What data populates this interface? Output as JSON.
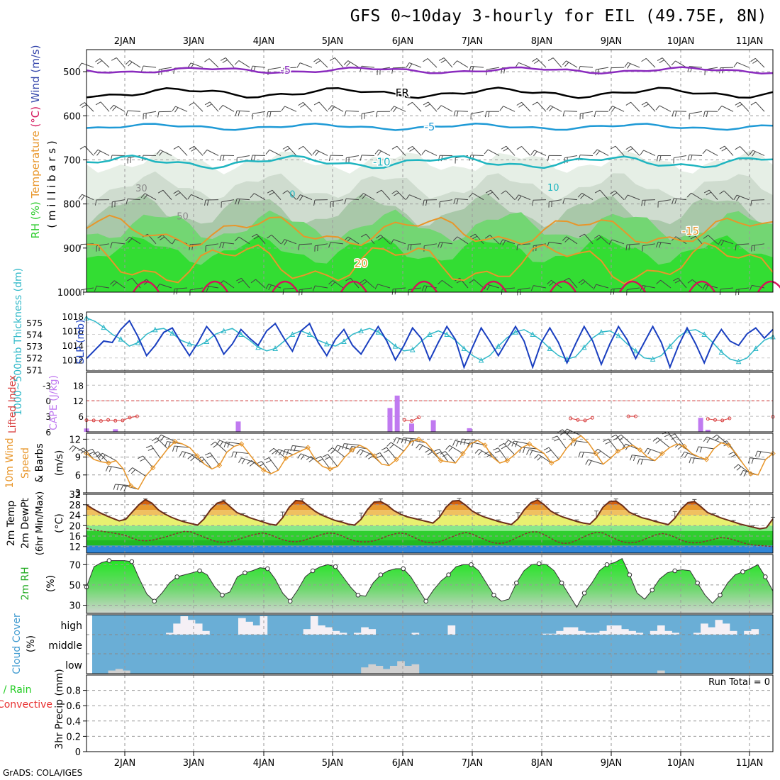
{
  "title": "GFS 0~10day 3-hourly for EIL (49.75E, 8N)",
  "credit": "GrADS: COLA/IGES",
  "chart_data": [
    {
      "type": "heatmap",
      "ylabel_parts": [
        {
          "text": "RH (%)",
          "color": "#2ecc2e"
        },
        {
          "text": "Temperature",
          "color": "#e8962a"
        },
        {
          "text": "(°C)",
          "color": "#d4145a"
        },
        {
          "text": "Wind (m/s)",
          "color": "#3344aa"
        }
      ],
      "ylabel2": "( m i l l i b a r s )",
      "y_ticks": [
        500,
        600,
        700,
        800,
        900,
        1000
      ],
      "ylim": [
        450,
        1000
      ],
      "isotherm_labels": [
        {
          "text": "-5",
          "color": "#8a2bbe"
        },
        {
          "text": "FR",
          "color": "#000000"
        },
        {
          "text": "-5",
          "color": "#1f9ad6"
        },
        {
          "text": "-10",
          "color": "#1fb5c0"
        },
        {
          "text": "0",
          "color": "#1fb5c0"
        },
        {
          "text": "10",
          "color": "#1fb5c0"
        },
        {
          "text": "-15",
          "color": "#e8962a"
        },
        {
          "text": "20",
          "color": "#e8962a"
        },
        {
          "text": "30",
          "color": "#888888"
        },
        {
          "text": "50",
          "color": "#888888"
        }
      ]
    },
    {
      "type": "line",
      "ylabel_left": "1000~500mb Thickness (dm)",
      "ylabel_right": "SLP (mb)",
      "left_ticks": [
        571,
        572,
        573,
        574,
        575
      ],
      "right_ticks": [
        1012,
        1014,
        1016,
        1018
      ],
      "thickness_dm": [
        575.4,
        575.1,
        574.6,
        574.0,
        573.6,
        573.0,
        573.3,
        574.0,
        574.4,
        574.5,
        574.1,
        573.5,
        573.2,
        573.0,
        573.4,
        574.0,
        574.3,
        574.5,
        574.0,
        573.5,
        572.9,
        572.6,
        572.8,
        573.4,
        574.0,
        574.3,
        574.0,
        573.5,
        573.2,
        573.0,
        573.4,
        574.0,
        574.3,
        574.5,
        574.2,
        573.6,
        573.0,
        572.6,
        572.7,
        573.4,
        574.0,
        574.3,
        574.0,
        573.5,
        572.8,
        572.2,
        571.8,
        572.2,
        573.0,
        573.7,
        574.2,
        574.4,
        574.0,
        573.5,
        572.8,
        572.2,
        571.9,
        572.1,
        572.9,
        573.7,
        574.2,
        574.3,
        573.9,
        573.2,
        572.6,
        572.0,
        571.9,
        572.2,
        573.0,
        573.8,
        574.3,
        574.4,
        574.0,
        573.3,
        572.5,
        571.9,
        571.7,
        572.0,
        572.8,
        573.5,
        573.8
      ],
      "slp_mb": [
        1012.2,
        1013.4,
        1014.6,
        1014.4,
        1016.2,
        1017.4,
        1015.2,
        1012.6,
        1014.0,
        1015.8,
        1016.4,
        1014.4,
        1012.6,
        1014.4,
        1016.6,
        1015.2,
        1012.8,
        1014.2,
        1016.2,
        1015.0,
        1014.0,
        1016.0,
        1017.0,
        1015.0,
        1013.2,
        1016.0,
        1017.0,
        1014.4,
        1012.6,
        1014.8,
        1016.2,
        1014.0,
        1012.8,
        1014.8,
        1016.6,
        1014.6,
        1012.0,
        1014.0,
        1016.4,
        1015.0,
        1012.0,
        1014.4,
        1016.6,
        1014.8,
        1011.0,
        1013.8,
        1016.4,
        1014.6,
        1012.6,
        1014.6,
        1016.6,
        1014.6,
        1011.0,
        1014.4,
        1016.4,
        1014.4,
        1011.6,
        1014.2,
        1016.6,
        1014.6,
        1011.4,
        1014.2,
        1016.6,
        1014.8,
        1012.2,
        1014.4,
        1016.6,
        1014.4,
        1011.0,
        1014.0,
        1016.4,
        1014.2,
        1011.6,
        1014.4,
        1016.2,
        1014.6,
        1014.0,
        1015.6,
        1016.4,
        1015.0,
        1016.2
      ],
      "colors": {
        "thickness": "#2fb8c8",
        "slp": "#1a3fc0"
      }
    },
    {
      "type": "bar",
      "ylabel_left": "Lifted Index",
      "ylabel_right": "CAPE (J/kg)",
      "left_ticks": [
        "6",
        "3",
        "0",
        "-3"
      ],
      "right_ticks": [
        6,
        12,
        18
      ],
      "cape_bars": [
        [
          0,
          1.3
        ],
        [
          4,
          1.0
        ],
        [
          21,
          4.0
        ],
        [
          42,
          9.2
        ],
        [
          43,
          14.0
        ],
        [
          45,
          3.2
        ],
        [
          48,
          4.5
        ],
        [
          53,
          1.4
        ],
        [
          85,
          5.4
        ],
        [
          86,
          0.8
        ]
      ],
      "lifted_index": [
        [
          0,
          4.5
        ],
        [
          1,
          4.4
        ],
        [
          2,
          4.2
        ],
        [
          3,
          4.6
        ],
        [
          4,
          4.3
        ],
        [
          5,
          4.4
        ],
        [
          6,
          5.5
        ],
        [
          7,
          6.0
        ],
        [
          44,
          4.6
        ],
        [
          45,
          4.2
        ],
        [
          46,
          5.6
        ],
        [
          67,
          5.2
        ],
        [
          68,
          4.6
        ],
        [
          69,
          4.4
        ],
        [
          70,
          5.4
        ],
        [
          75,
          6.0
        ],
        [
          76,
          6.0
        ],
        [
          86,
          5.0
        ],
        [
          87,
          4.6
        ],
        [
          88,
          4.4
        ],
        [
          89,
          5.2
        ],
        [
          95,
          5.8
        ]
      ],
      "zero_line": 12,
      "colors": {
        "cape": "#c07af0",
        "li": "#d94040"
      }
    },
    {
      "type": "line",
      "ylabel_parts": [
        {
          "text": "10m Wind",
          "color": "#e8962a"
        },
        {
          "text": "Speed",
          "color": "#e8962a"
        },
        {
          "text": "& Barbs",
          "color": "#000000"
        }
      ],
      "ylabel_right": "(m/s)",
      "y_ticks": [
        3,
        6,
        9,
        12
      ],
      "ylim": [
        3,
        13
      ],
      "speed_ms": [
        9.6,
        8.6,
        8.2,
        8.0,
        8.4,
        7.0,
        4.2,
        3.6,
        5.8,
        7.2,
        8.8,
        10.4,
        11.6,
        11.2,
        10.6,
        9.2,
        7.8,
        7.0,
        7.6,
        9.8,
        10.8,
        11.2,
        9.6,
        8.0,
        6.8,
        6.2,
        6.8,
        8.8,
        9.4,
        10.0,
        10.6,
        8.6,
        7.4,
        7.0,
        7.4,
        9.0,
        10.2,
        11.0,
        10.4,
        9.2,
        7.8,
        7.6,
        8.6,
        10.0,
        11.6,
        12.0,
        11.4,
        10.0,
        8.4,
        8.2,
        8.0,
        9.6,
        11.2,
        11.8,
        11.0,
        9.0,
        8.0,
        8.4,
        9.4,
        10.6,
        11.2,
        10.4,
        9.6,
        8.0,
        8.6,
        10.4,
        11.8,
        12.6,
        11.4,
        9.6,
        7.8,
        8.8,
        10.0,
        10.6,
        11.0,
        10.2,
        9.0,
        8.4,
        9.6,
        10.6,
        11.2,
        10.8,
        9.6,
        9.0,
        8.6,
        10.4,
        11.4,
        11.0,
        9.6,
        7.8,
        6.2,
        6.0,
        8.6,
        9.6
      ],
      "colors": {
        "speed": "#e8962a",
        "barb": "#6b4a2a"
      }
    },
    {
      "type": "area",
      "ylabel_parts": [
        {
          "text": "2m Temp",
          "color": "#000000"
        },
        {
          "text": "2m DewPt",
          "color": "#000000"
        },
        {
          "text": "(6hr Min/Max)",
          "color": "#000000"
        }
      ],
      "ylabel_right": "(°C)",
      "y_ticks": [
        12,
        16,
        20,
        24,
        28,
        32
      ],
      "ylim": [
        9.5,
        32
      ],
      "temp_c": [
        28.0,
        26.4,
        25.0,
        23.8,
        22.8,
        21.8,
        22.4,
        25.2,
        28.0,
        30.0,
        28.6,
        26.0,
        24.4,
        23.2,
        22.2,
        21.4,
        20.8,
        20.2,
        22.6,
        26.2,
        28.6,
        29.4,
        27.2,
        25.0,
        24.0,
        23.0,
        22.2,
        21.4,
        20.6,
        20.2,
        23.0,
        27.0,
        29.6,
        29.4,
        27.4,
        25.4,
        24.0,
        23.0,
        22.0,
        21.4,
        20.6,
        20.2,
        22.4,
        26.2,
        29.0,
        29.2,
        27.8,
        25.8,
        24.4,
        23.4,
        22.8,
        22.2,
        21.6,
        21.0,
        23.2,
        27.0,
        29.4,
        29.6,
        27.8,
        25.6,
        24.2,
        23.2,
        22.4,
        21.6,
        21.0,
        20.4,
        22.6,
        26.2,
        28.8,
        29.8,
        28.0,
        25.6,
        24.2,
        23.2,
        22.4,
        21.6,
        21.0,
        20.6,
        23.0,
        27.0,
        29.2,
        29.4,
        27.6,
        25.2,
        24.0,
        23.0,
        22.4,
        21.6,
        21.0,
        20.4,
        22.8,
        26.4,
        28.8,
        29.2,
        27.2,
        25.0,
        24.0,
        23.0,
        22.2,
        21.4,
        20.6,
        20.0,
        19.4,
        18.8,
        19.2,
        22.6
      ],
      "max_c": [
        28.0,
        27.2,
        27.0,
        25.0,
        24.2,
        22.6,
        22.8,
        27.6,
        29.8,
        30.2,
        28.8,
        26.0,
        25.0,
        24.0,
        23.0,
        22.0,
        21.2,
        21.0,
        24.0,
        28.4,
        29.8,
        29.8,
        28.4,
        26.0,
        24.6,
        23.6,
        22.6,
        22.0,
        21.4,
        21.2,
        25.2,
        29.6,
        30.2,
        30.2,
        28.4,
        26.0,
        24.4,
        23.4,
        22.4,
        21.8,
        21.0,
        20.8,
        24.8,
        28.6,
        30.2,
        30.2,
        28.4,
        26.8,
        25.2,
        24.0,
        23.2,
        22.6,
        22.0,
        21.6,
        25.6,
        29.4,
        30.4,
        30.4,
        28.6,
        26.4,
        25.0,
        24.0,
        23.0,
        22.2,
        21.4,
        21.0,
        25.0,
        28.6,
        30.0,
        30.4,
        28.8,
        26.6,
        25.0,
        24.0,
        23.0,
        22.2,
        21.6,
        21.0,
        25.6,
        29.0,
        30.2,
        30.2,
        28.6,
        26.4,
        24.6,
        23.6,
        22.8,
        22.0,
        21.4,
        21.0,
        25.4,
        28.8,
        29.8,
        30.0,
        28.4,
        26.0,
        24.6,
        23.6,
        22.6,
        22.0,
        21.2,
        20.6,
        20.0,
        19.4,
        19.8,
        23.2
      ],
      "dewpt_c": [
        19.0,
        18.4,
        18.0,
        17.6,
        17.2,
        16.8,
        16.2,
        15.2,
        14.4,
        14.2,
        14.4,
        15.0,
        15.6,
        16.4,
        17.2,
        17.8,
        17.6,
        16.6,
        15.6,
        14.6,
        13.8,
        13.6,
        14.0,
        14.6,
        15.4,
        16.2,
        16.8,
        17.2,
        16.6,
        15.6,
        14.6,
        14.0,
        13.8,
        14.2,
        15.0,
        15.8,
        16.6,
        17.2,
        17.0,
        16.2,
        15.0,
        14.2,
        13.8,
        13.8,
        14.2,
        15.0,
        16.0,
        16.8,
        17.2,
        16.8,
        15.6,
        14.4,
        13.6,
        13.4,
        13.8,
        14.8,
        15.8,
        16.8,
        17.4,
        16.8,
        15.6,
        14.6,
        13.6,
        13.2,
        13.4,
        14.4,
        15.6,
        16.8,
        17.6,
        17.6,
        16.6,
        15.2,
        13.8,
        13.2,
        13.4,
        14.4,
        15.6,
        16.8,
        17.4,
        17.2,
        16.0,
        14.8,
        13.8,
        13.4,
        13.6,
        14.4,
        15.4,
        16.4,
        17.0,
        16.6,
        15.6,
        14.4,
        13.6,
        13.4,
        13.6,
        14.2,
        14.8,
        15.4,
        15.2,
        14.6,
        13.8,
        13.0,
        12.6,
        12.4,
        12.2,
        12.0
      ],
      "colors": {
        "bands": [
          "#2f86d8",
          "#22b822",
          "#2fce2f",
          "#8ae88a",
          "#e8f070",
          "#f0c060",
          "#e89a30",
          "#d26010"
        ],
        "temp": "#6b2e1a",
        "dewpt": "#8a3030"
      }
    },
    {
      "type": "area",
      "ylabel_left": "2m RH",
      "ylabel_right": "(%)",
      "y_ticks": [
        30,
        50,
        70
      ],
      "ylim": [
        22,
        80
      ],
      "rh_pct": [
        48,
        68,
        72,
        74,
        74,
        74,
        73,
        56,
        41,
        34,
        42,
        52,
        58,
        60,
        62,
        64,
        60,
        48,
        40,
        43,
        58,
        62,
        64,
        67,
        66,
        56,
        42,
        34,
        45,
        58,
        64,
        68,
        70,
        68,
        58,
        48,
        40,
        39,
        52,
        60,
        64,
        66,
        66,
        58,
        46,
        34,
        45,
        54,
        60,
        68,
        70,
        70,
        64,
        52,
        40,
        34,
        36,
        52,
        64,
        70,
        71,
        70,
        64,
        52,
        40,
        28,
        42,
        52,
        64,
        70,
        72,
        76,
        60,
        42,
        36,
        45,
        56,
        62,
        64,
        65,
        64,
        52,
        40,
        32,
        40,
        52,
        60,
        63,
        66,
        70,
        58,
        44
      ],
      "colors": {
        "line": "#22aa22",
        "fill_top": "#22ee22",
        "fill_bottom": "#cfd8cf"
      }
    },
    {
      "type": "bar",
      "ylabel_left": "Cloud Cover",
      "ylabel_right": "(%)",
      "level_labels": [
        "high",
        "middle",
        "low"
      ],
      "high_pct": [
        0,
        0,
        0,
        0,
        0,
        0,
        0,
        0,
        0,
        0,
        0,
        10,
        60,
        100,
        80,
        60,
        20,
        0,
        0,
        0,
        0,
        90,
        70,
        50,
        100,
        0,
        0,
        0,
        0,
        0,
        30,
        100,
        50,
        40,
        20,
        10,
        0,
        10,
        40,
        30,
        0,
        0,
        0,
        0,
        0,
        10,
        0,
        0,
        0,
        0,
        50,
        0,
        0,
        0,
        0,
        0,
        0,
        0,
        0,
        0,
        0,
        0,
        0,
        5,
        5,
        20,
        40,
        40,
        20,
        10,
        10,
        20,
        50,
        50,
        30,
        20,
        10,
        0,
        20,
        50,
        20,
        10,
        0,
        0,
        10,
        60,
        40,
        80,
        60,
        20,
        0,
        20,
        30,
        0,
        0
      ],
      "mid_pct": [
        0,
        0,
        0,
        0,
        0,
        0,
        0,
        0,
        0,
        0,
        0,
        0,
        0,
        0,
        0,
        0,
        0,
        0,
        0,
        0,
        0,
        0,
        0,
        0,
        0,
        0,
        0,
        0,
        0,
        0,
        0,
        0,
        0,
        0,
        0,
        0,
        0,
        0,
        0,
        0,
        0,
        0,
        0,
        0,
        0,
        0,
        0,
        0,
        0,
        0,
        0,
        0,
        0,
        0,
        0,
        0,
        0,
        0,
        0,
        0,
        0,
        0,
        0,
        0,
        0,
        0,
        0,
        0,
        0,
        0,
        0,
        0,
        0,
        0,
        0,
        0,
        0,
        0,
        0,
        0,
        0,
        0,
        0,
        0,
        0,
        0,
        0,
        0,
        0,
        0,
        0,
        0,
        0,
        0,
        0
      ],
      "low_pct": [
        0,
        0,
        0,
        20,
        30,
        20,
        0,
        0,
        0,
        0,
        0,
        0,
        0,
        0,
        0,
        0,
        0,
        0,
        0,
        0,
        0,
        0,
        0,
        0,
        0,
        0,
        0,
        0,
        0,
        0,
        0,
        0,
        0,
        0,
        0,
        0,
        0,
        0,
        40,
        60,
        50,
        30,
        50,
        80,
        50,
        60,
        0,
        0,
        0,
        0,
        0,
        0,
        0,
        0,
        0,
        0,
        0,
        0,
        0,
        0,
        0,
        0,
        0,
        0,
        0,
        0,
        0,
        0,
        0,
        0,
        0,
        0,
        0,
        0,
        0,
        0,
        0,
        0,
        0,
        20,
        0,
        0,
        0,
        0,
        0,
        0,
        0,
        0,
        0,
        0,
        0,
        0,
        0,
        0,
        0
      ],
      "colors": {
        "bg": "#6aaed6",
        "cloud": "#f5f0f5",
        "low_cloud": "#d0d0d0"
      }
    },
    {
      "type": "bar",
      "ylabel_parts": [
        {
          "text": "Total / Rain",
          "color": "#22cc22"
        },
        {
          "text": "Convective",
          "color": "#e83030"
        },
        {
          "text": "3hr Precip (mm)",
          "color": "#000000"
        }
      ],
      "y_ticks": [
        0,
        0.2,
        0.4,
        0.6,
        0.8
      ],
      "ylim": [
        0,
        1
      ],
      "run_total": "Run Total = 0",
      "total_mm": [],
      "convective_mm": []
    }
  ],
  "x_axis": {
    "tick_labels": [
      "2JAN",
      "3JAN",
      "4JAN",
      "5JAN",
      "6JAN",
      "7JAN",
      "8JAN",
      "9JAN",
      "10JAN",
      "11JAN"
    ]
  }
}
